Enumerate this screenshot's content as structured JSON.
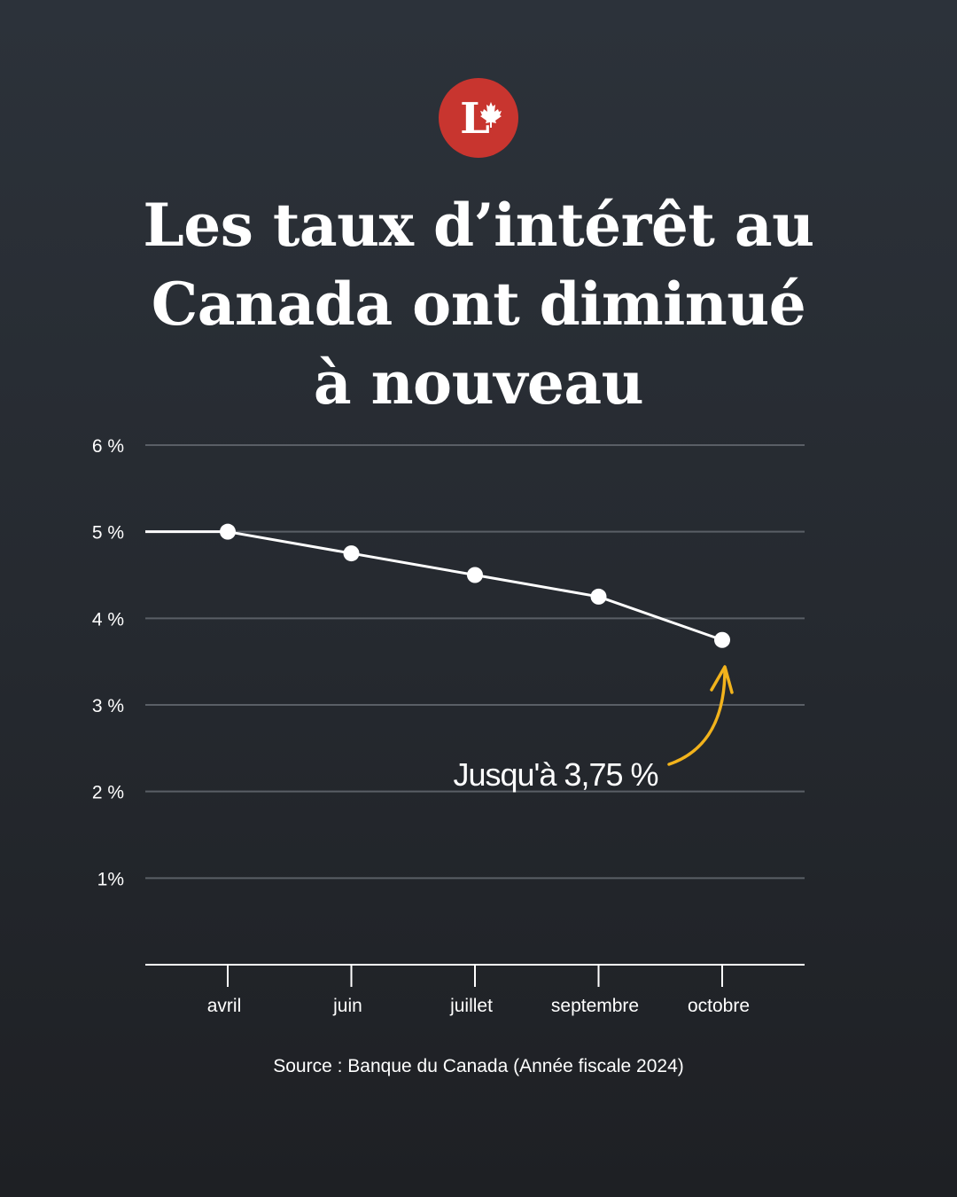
{
  "brand": {
    "logo_letter": "L",
    "logo_color": "#c8352f",
    "logo_icon": "maple-leaf-icon"
  },
  "title_lines": [
    "Les taux d’intérêt au",
    "Canada ont diminué",
    "à nouveau"
  ],
  "source": "Source : Banque du Canada (Année fiscale 2024)",
  "annotation": {
    "text": "Jusqu'à 3,75 %",
    "arrow_color": "#f2b31c",
    "points_to": "octobre"
  },
  "chart_data": {
    "type": "line",
    "title": "Les taux d’intérêt au Canada ont diminué à nouveau",
    "xlabel": "",
    "ylabel": "",
    "categories": [
      "avril",
      "juin",
      "juillet",
      "septembre",
      "octobre"
    ],
    "values": [
      5.0,
      4.75,
      4.5,
      4.25,
      3.75
    ],
    "line_starts_at": 5.0,
    "ylim": [
      0,
      6
    ],
    "yticks": [
      {
        "value": 6,
        "label": "6 %"
      },
      {
        "value": 5,
        "label": "5 %"
      },
      {
        "value": 4,
        "label": "4 %"
      },
      {
        "value": 3,
        "label": "3 %"
      },
      {
        "value": 2,
        "label": "2 %"
      },
      {
        "value": 1,
        "label": "1%"
      }
    ],
    "grid": true,
    "colors": {
      "line": "#ffffff",
      "grid": "#5a5f66",
      "axis": "#ffffff"
    }
  }
}
